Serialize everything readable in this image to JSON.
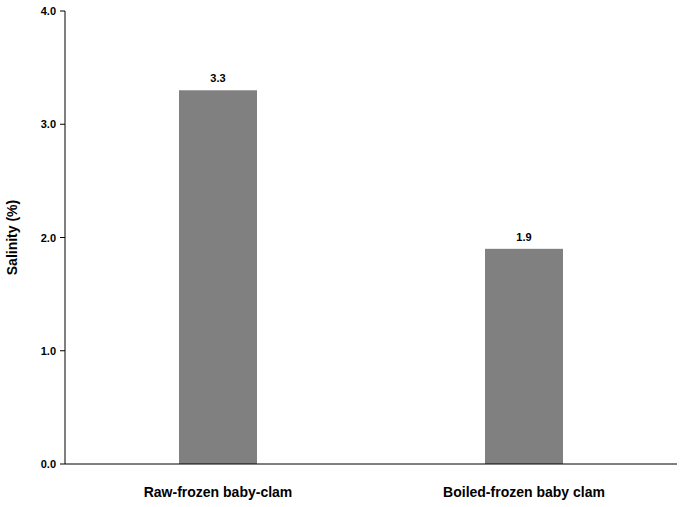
{
  "chart_data": {
    "type": "bar",
    "categories": [
      "Raw-frozen baby-clam",
      "Boiled-frozen baby clam"
    ],
    "values": [
      3.3,
      1.9
    ],
    "color": "#808080",
    "y_label": "Salinity (%)",
    "ylim": [
      0,
      4
    ],
    "yticks": [
      {
        "value": 0,
        "label": "0.0"
      },
      {
        "value": 1,
        "label": "1.0"
      },
      {
        "value": 2,
        "label": "2.0"
      },
      {
        "value": 3,
        "label": "3.0"
      },
      {
        "value": 4,
        "label": "4.0"
      }
    ],
    "grid": false,
    "data_labels": true
  }
}
